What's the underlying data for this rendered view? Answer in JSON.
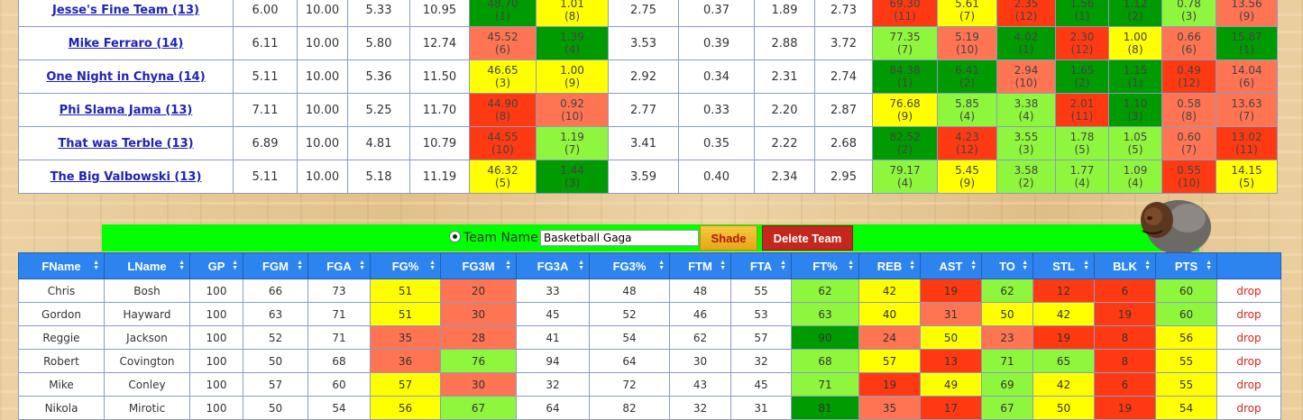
{
  "colors": {
    "dark_green": "#009b00",
    "light_green": "#8ff63e",
    "yellow": "#ffff00",
    "orange": "#ff7452",
    "red": "#ff3a12",
    "header_blue": "#2e84ef",
    "bar_green": "#00ff00"
  },
  "standings": [
    {
      "team": "Jesse's Fine Team (13)",
      "s": [
        "6.00",
        "10.00",
        "5.33",
        "10.95"
      ],
      "c1": [
        {
          "v": "48.70",
          "r": "(1)",
          "c": "dark_green"
        },
        {
          "v": "1.01",
          "r": "(8)",
          "c": "yellow"
        }
      ],
      "m": [
        "2.75",
        "0.37",
        "1.89",
        "2.73"
      ],
      "c2": [
        {
          "v": "69.30",
          "r": "(11)",
          "c": "red"
        },
        {
          "v": "5.61",
          "r": "(7)",
          "c": "yellow"
        },
        {
          "v": "2.35",
          "r": "(12)",
          "c": "red"
        },
        {
          "v": "1.56",
          "r": "(1)",
          "c": "dark_green"
        },
        {
          "v": "1.12",
          "r": "(2)",
          "c": "dark_green"
        },
        {
          "v": "0.78",
          "r": "(3)",
          "c": "light_green"
        },
        {
          "v": "13.56",
          "r": "(9)",
          "c": "orange"
        }
      ]
    },
    {
      "team": "Mike Ferraro (14)",
      "s": [
        "6.11",
        "10.00",
        "5.80",
        "12.74"
      ],
      "c1": [
        {
          "v": "45.52",
          "r": "(6)",
          "c": "orange"
        },
        {
          "v": "1.39",
          "r": "(4)",
          "c": "dark_green"
        }
      ],
      "m": [
        "3.53",
        "0.39",
        "2.88",
        "3.72"
      ],
      "c2": [
        {
          "v": "77.35",
          "r": "(7)",
          "c": "light_green"
        },
        {
          "v": "5.19",
          "r": "(10)",
          "c": "orange"
        },
        {
          "v": "4.02",
          "r": "(1)",
          "c": "dark_green"
        },
        {
          "v": "2.30",
          "r": "(12)",
          "c": "red"
        },
        {
          "v": "1.00",
          "r": "(8)",
          "c": "yellow"
        },
        {
          "v": "0.66",
          "r": "(6)",
          "c": "orange"
        },
        {
          "v": "15.87",
          "r": "(1)",
          "c": "dark_green"
        }
      ]
    },
    {
      "team": "One Night in Chyna (14)",
      "s": [
        "5.11",
        "10.00",
        "5.36",
        "11.50"
      ],
      "c1": [
        {
          "v": "46.65",
          "r": "(3)",
          "c": "yellow"
        },
        {
          "v": "1.00",
          "r": "(9)",
          "c": "yellow"
        }
      ],
      "m": [
        "2.92",
        "0.34",
        "2.31",
        "2.74"
      ],
      "c2": [
        {
          "v": "84.38",
          "r": "(1)",
          "c": "dark_green"
        },
        {
          "v": "6.41",
          "r": "(2)",
          "c": "dark_green"
        },
        {
          "v": "2.94",
          "r": "(10)",
          "c": "orange"
        },
        {
          "v": "1.65",
          "r": "(2)",
          "c": "dark_green"
        },
        {
          "v": "1.15",
          "r": "(1)",
          "c": "dark_green"
        },
        {
          "v": "0.49",
          "r": "(12)",
          "c": "red"
        },
        {
          "v": "14.04",
          "r": "(6)",
          "c": "orange"
        }
      ]
    },
    {
      "team": "Phi Slama Jama (13)",
      "s": [
        "7.11",
        "10.00",
        "5.25",
        "11.70"
      ],
      "c1": [
        {
          "v": "44.90",
          "r": "(8)",
          "c": "red"
        },
        {
          "v": "0.92",
          "r": "(10)",
          "c": "orange"
        }
      ],
      "m": [
        "2.77",
        "0.33",
        "2.20",
        "2.87"
      ],
      "c2": [
        {
          "v": "76.68",
          "r": "(9)",
          "c": "yellow"
        },
        {
          "v": "5.85",
          "r": "(4)",
          "c": "light_green"
        },
        {
          "v": "3.38",
          "r": "(4)",
          "c": "light_green"
        },
        {
          "v": "2.01",
          "r": "(11)",
          "c": "red"
        },
        {
          "v": "1.10",
          "r": "(3)",
          "c": "dark_green"
        },
        {
          "v": "0.58",
          "r": "(8)",
          "c": "orange"
        },
        {
          "v": "13.63",
          "r": "(7)",
          "c": "orange"
        }
      ]
    },
    {
      "team": "That was Terble (13)",
      "s": [
        "6.89",
        "10.00",
        "4.81",
        "10.79"
      ],
      "c1": [
        {
          "v": "44.55",
          "r": "(10)",
          "c": "red"
        },
        {
          "v": "1.19",
          "r": "(7)",
          "c": "light_green"
        }
      ],
      "m": [
        "3.41",
        "0.35",
        "2.22",
        "2.68"
      ],
      "c2": [
        {
          "v": "82.52",
          "r": "(2)",
          "c": "dark_green"
        },
        {
          "v": "4.23",
          "r": "(12)",
          "c": "red"
        },
        {
          "v": "3.55",
          "r": "(3)",
          "c": "light_green"
        },
        {
          "v": "1.78",
          "r": "(5)",
          "c": "light_green"
        },
        {
          "v": "1.05",
          "r": "(5)",
          "c": "light_green"
        },
        {
          "v": "0.60",
          "r": "(7)",
          "c": "orange"
        },
        {
          "v": "13.02",
          "r": "(11)",
          "c": "red"
        }
      ]
    },
    {
      "team": "The Big Valbowski (13)",
      "s": [
        "5.11",
        "10.00",
        "5.18",
        "11.19"
      ],
      "c1": [
        {
          "v": "46.32",
          "r": "(5)",
          "c": "yellow"
        },
        {
          "v": "1.44",
          "r": "(3)",
          "c": "dark_green"
        }
      ],
      "m": [
        "3.59",
        "0.40",
        "2.34",
        "2.95"
      ],
      "c2": [
        {
          "v": "79.17",
          "r": "(4)",
          "c": "light_green"
        },
        {
          "v": "5.45",
          "r": "(9)",
          "c": "yellow"
        },
        {
          "v": "3.58",
          "r": "(2)",
          "c": "light_green"
        },
        {
          "v": "1.77",
          "r": "(4)",
          "c": "light_green"
        },
        {
          "v": "1.09",
          "r": "(4)",
          "c": "light_green"
        },
        {
          "v": "0.55",
          "r": "(10)",
          "c": "red"
        },
        {
          "v": "14.15",
          "r": "(5)",
          "c": "yellow"
        }
      ]
    }
  ],
  "controls": {
    "team_name_label": "Team Name",
    "team_name_value": "Basketball Gaga",
    "shade_label": "Shade",
    "delete_label": "Delete Team"
  },
  "player_headers": [
    "FName",
    "LName",
    "GP",
    "FGM",
    "FGA",
    "FG%",
    "FG3M",
    "FG3A",
    "FG3%",
    "FTM",
    "FTA",
    "FT%",
    "REB",
    "AST",
    "TO",
    "STL",
    "BLK",
    "PTS",
    ""
  ],
  "players": [
    {
      "vals": [
        "Chris",
        "Bosh",
        "100",
        "66",
        "73",
        "51",
        "20",
        "33",
        "48",
        "48",
        "55",
        "62",
        "42",
        "19",
        "62",
        "12",
        "6",
        "60"
      ],
      "colors": [
        "",
        "",
        "",
        "",
        "",
        "yellow",
        "orange",
        "",
        "",
        "",
        "",
        "light_green",
        "yellow",
        "red",
        "light_green",
        "red",
        "red",
        "light_green"
      ],
      "drop": "drop"
    },
    {
      "vals": [
        "Gordon",
        "Hayward",
        "100",
        "63",
        "71",
        "51",
        "30",
        "45",
        "52",
        "46",
        "53",
        "63",
        "40",
        "31",
        "50",
        "42",
        "19",
        "60"
      ],
      "colors": [
        "",
        "",
        "",
        "",
        "",
        "yellow",
        "orange",
        "",
        "",
        "",
        "",
        "light_green",
        "yellow",
        "orange",
        "yellow",
        "yellow",
        "red",
        "light_green"
      ],
      "drop": "drop"
    },
    {
      "vals": [
        "Reggie",
        "Jackson",
        "100",
        "52",
        "71",
        "35",
        "28",
        "41",
        "54",
        "62",
        "57",
        "90",
        "24",
        "50",
        "23",
        "19",
        "8",
        "56"
      ],
      "colors": [
        "",
        "",
        "",
        "",
        "",
        "orange",
        "orange",
        "",
        "",
        "",
        "",
        "dark_green",
        "orange",
        "yellow",
        "orange",
        "red",
        "red",
        "yellow"
      ],
      "drop": "drop"
    },
    {
      "vals": [
        "Robert",
        "Covington",
        "100",
        "50",
        "68",
        "36",
        "76",
        "94",
        "64",
        "30",
        "32",
        "68",
        "57",
        "13",
        "71",
        "65",
        "8",
        "55"
      ],
      "colors": [
        "",
        "",
        "",
        "",
        "",
        "orange",
        "light_green",
        "",
        "",
        "",
        "",
        "light_green",
        "yellow",
        "red",
        "light_green",
        "light_green",
        "red",
        "yellow"
      ],
      "drop": "drop"
    },
    {
      "vals": [
        "Mike",
        "Conley",
        "100",
        "57",
        "60",
        "57",
        "30",
        "32",
        "72",
        "43",
        "45",
        "71",
        "19",
        "49",
        "69",
        "42",
        "6",
        "55"
      ],
      "colors": [
        "",
        "",
        "",
        "",
        "",
        "yellow",
        "orange",
        "",
        "",
        "",
        "",
        "light_green",
        "red",
        "yellow",
        "light_green",
        "yellow",
        "red",
        "yellow"
      ],
      "drop": "drop"
    },
    {
      "vals": [
        "Nikola",
        "Mirotic",
        "100",
        "50",
        "54",
        "56",
        "67",
        "64",
        "82",
        "32",
        "31",
        "81",
        "35",
        "17",
        "67",
        "50",
        "19",
        "54"
      ],
      "colors": [
        "",
        "",
        "",
        "",
        "",
        "yellow",
        "light_green",
        "",
        "",
        "",
        "",
        "dark_green",
        "orange",
        "red",
        "light_green",
        "yellow",
        "red",
        "yellow"
      ],
      "drop": "drop"
    }
  ]
}
